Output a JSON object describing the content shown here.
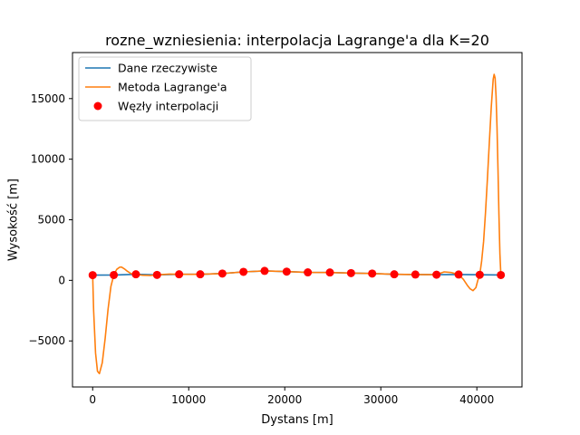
{
  "chart_data": {
    "type": "line",
    "title": "rozne_wzniesienia: interpolacja Lagrange'a dla K=20",
    "xlabel": "Dystans [m]",
    "ylabel": "Wysokość [m]",
    "xlim": [
      -2100,
      44700
    ],
    "ylim": [
      -8800,
      18800
    ],
    "xticks": [
      0,
      10000,
      20000,
      30000,
      40000
    ],
    "yticks": [
      -5000,
      0,
      5000,
      10000,
      15000
    ],
    "grid": false,
    "legend_position": "top-left",
    "series": [
      {
        "name": "Dane rzeczywiste",
        "kind": "line",
        "color": "#1f77b4",
        "x": [
          0,
          2200,
          4500,
          6700,
          9000,
          11200,
          13500,
          15700,
          17900,
          20200,
          22400,
          24700,
          26900,
          29100,
          31400,
          33600,
          35800,
          38100,
          40300,
          42500
        ],
        "y": [
          430,
          440,
          500,
          450,
          500,
          500,
          560,
          700,
          780,
          720,
          660,
          650,
          600,
          560,
          500,
          480,
          470,
          480,
          460,
          440
        ]
      },
      {
        "name": "Metoda Lagrange'a",
        "kind": "line",
        "color": "#ff7f0e",
        "x": [
          0,
          100,
          300,
          500,
          700,
          1000,
          1300,
          1600,
          1900,
          2200,
          2500,
          2800,
          3000,
          3300,
          3600,
          4000,
          4500,
          5200,
          6000,
          6700,
          8000,
          9000,
          11200,
          13500,
          15700,
          17900,
          20200,
          22400,
          24700,
          26900,
          29100,
          31400,
          33600,
          35800,
          36600,
          37300,
          38100,
          38600,
          39000,
          39300,
          39600,
          39900,
          40100,
          40300,
          40500,
          40700,
          40900,
          41100,
          41300,
          41500,
          41700,
          41800,
          41900,
          42000,
          42100,
          42200,
          42300,
          42400,
          42500
        ],
        "y": [
          430,
          -2500,
          -6000,
          -7500,
          -7700,
          -6800,
          -4800,
          -2400,
          -500,
          440,
          900,
          1080,
          1100,
          950,
          760,
          550,
          500,
          420,
          400,
          450,
          520,
          500,
          500,
          560,
          700,
          780,
          720,
          660,
          650,
          600,
          560,
          500,
          480,
          470,
          700,
          650,
          480,
          80,
          -400,
          -700,
          -850,
          -600,
          0,
          460,
          1600,
          3200,
          5600,
          8400,
          11400,
          14300,
          16600,
          17000,
          16700,
          15200,
          12600,
          9200,
          5400,
          2200,
          440
        ]
      },
      {
        "name": "Węzły interpolacji",
        "kind": "scatter",
        "color": "#ff0000",
        "x": [
          0,
          2200,
          4500,
          6700,
          9000,
          11200,
          13500,
          15700,
          17900,
          20200,
          22400,
          24700,
          26900,
          29100,
          31400,
          33600,
          35800,
          38100,
          40300,
          42500
        ],
        "y": [
          430,
          440,
          500,
          450,
          500,
          500,
          560,
          700,
          780,
          720,
          660,
          650,
          600,
          560,
          500,
          480,
          470,
          480,
          460,
          440
        ]
      }
    ]
  }
}
